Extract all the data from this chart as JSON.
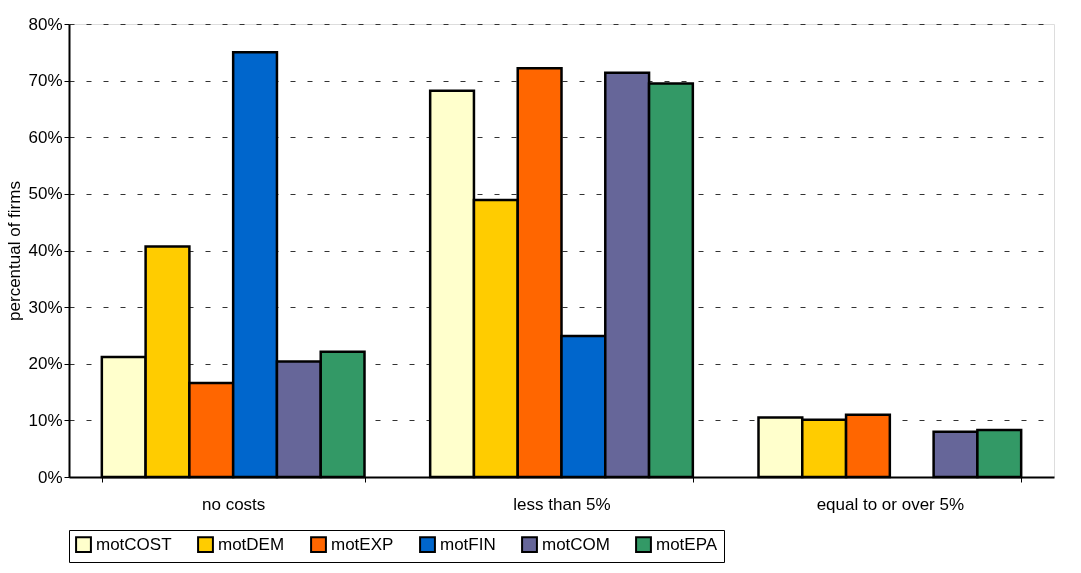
{
  "chart_data": {
    "type": "bar",
    "ylabel": "percentual of firms",
    "categories": [
      "no costs",
      "less than 5%",
      "equal to or over 5%"
    ],
    "series": [
      {
        "name": "motCOST",
        "color": "#ffffcc",
        "values": [
          21.2,
          68.2,
          10.5
        ]
      },
      {
        "name": "motDEM",
        "color": "#ffcc00",
        "values": [
          40.7,
          48.9,
          10.1
        ]
      },
      {
        "name": "motEXP",
        "color": "#ff6600",
        "values": [
          16.6,
          72.2,
          11.0
        ]
      },
      {
        "name": "motFIN",
        "color": "#0066cc",
        "values": [
          75.0,
          24.9,
          null
        ]
      },
      {
        "name": "motCOM",
        "color": "#666699",
        "values": [
          20.4,
          71.4,
          8.0
        ]
      },
      {
        "name": "motEPA",
        "color": "#339966",
        "values": [
          22.1,
          69.5,
          8.3
        ]
      }
    ],
    "ylim": [
      0,
      80
    ],
    "yticks": [
      {
        "value": 0,
        "label": "0%"
      },
      {
        "value": 10,
        "label": "10%"
      },
      {
        "value": 20,
        "label": "20%"
      },
      {
        "value": 30,
        "label": "30%"
      },
      {
        "value": 40,
        "label": "40%"
      },
      {
        "value": 50,
        "label": "50%"
      },
      {
        "value": 60,
        "label": "60%"
      },
      {
        "value": 70,
        "label": "70%"
      },
      {
        "value": 80,
        "label": "80%"
      }
    ],
    "grid": "y",
    "legend": "bottom"
  }
}
